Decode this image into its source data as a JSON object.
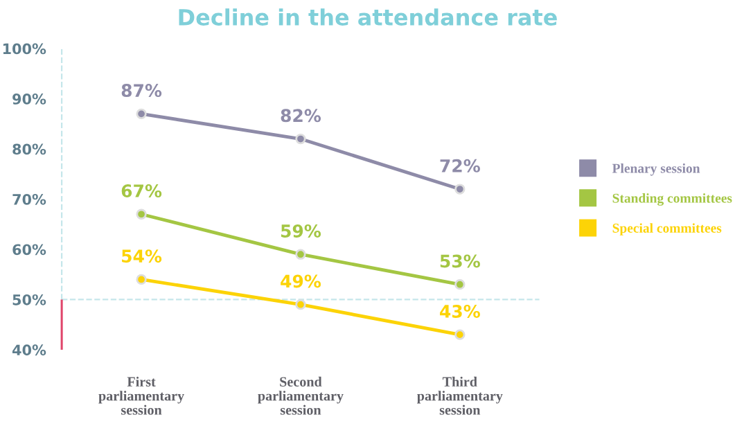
{
  "chart_data": {
    "type": "line",
    "title": "Decline in the attendance rate",
    "categories": [
      "First\nparliamentary\nsession",
      "Second\nparliamentary\nsession",
      "Third\nparliamentary\nsession"
    ],
    "series": [
      {
        "name": "Plenary session",
        "color": "#8e8ba8",
        "values": [
          87,
          82,
          72
        ],
        "value_labels": [
          "87%",
          "82%",
          "72%"
        ]
      },
      {
        "name": "Standing committees",
        "color": "#a4c643",
        "values": [
          67,
          59,
          53
        ],
        "value_labels": [
          "67%",
          "59%",
          "53%"
        ]
      },
      {
        "name": "Special committees",
        "color": "#fcd307",
        "values": [
          54,
          49,
          43
        ],
        "value_labels": [
          "54%",
          "49%",
          "43%"
        ]
      }
    ],
    "ylim": [
      40,
      100
    ],
    "yticks": [
      {
        "value": 40,
        "label": "40%"
      },
      {
        "value": 50,
        "label": "50%"
      },
      {
        "value": 60,
        "label": "60%"
      },
      {
        "value": 70,
        "label": "70%"
      },
      {
        "value": 80,
        "label": "80%"
      },
      {
        "value": 90,
        "label": "90%"
      },
      {
        "value": 100,
        "label": "100%"
      }
    ],
    "ref_lines": [
      {
        "axis": "y",
        "value": 50,
        "color": "#c5e6ea",
        "line_style": "dashed"
      }
    ],
    "marker": "circle",
    "line_style": "solid",
    "grid": false,
    "legend": "right"
  }
}
